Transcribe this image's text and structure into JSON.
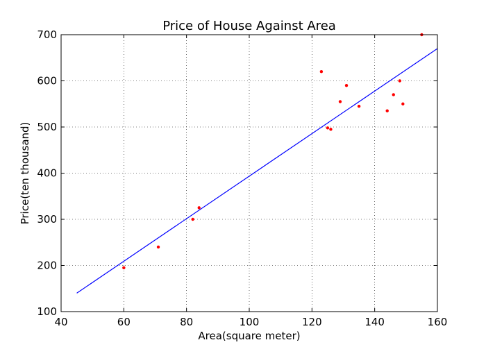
{
  "chart_data": {
    "type": "scatter",
    "title": "Price of House Against Area",
    "xlabel": "Area(square meter)",
    "ylabel": "Price(ten thousand)",
    "xlim": [
      40,
      160
    ],
    "ylim": [
      100,
      700
    ],
    "xticks": [
      40,
      60,
      80,
      100,
      120,
      140,
      160
    ],
    "yticks": [
      100,
      200,
      300,
      400,
      500,
      600,
      700
    ],
    "grid": true,
    "series": [
      {
        "type": "scatter",
        "color": "#ff0000",
        "points": [
          [
            60,
            195
          ],
          [
            71,
            240
          ],
          [
            82,
            300
          ],
          [
            84,
            325
          ],
          [
            123,
            620
          ],
          [
            125,
            498
          ],
          [
            126,
            495
          ],
          [
            129,
            555
          ],
          [
            131,
            590
          ],
          [
            135,
            545
          ],
          [
            144,
            535
          ],
          [
            146,
            570
          ],
          [
            148,
            600
          ],
          [
            149,
            550
          ],
          [
            155,
            700
          ]
        ]
      },
      {
        "type": "line",
        "color": "#0000ff",
        "points": [
          [
            45,
            140
          ],
          [
            160,
            670
          ]
        ]
      }
    ]
  }
}
